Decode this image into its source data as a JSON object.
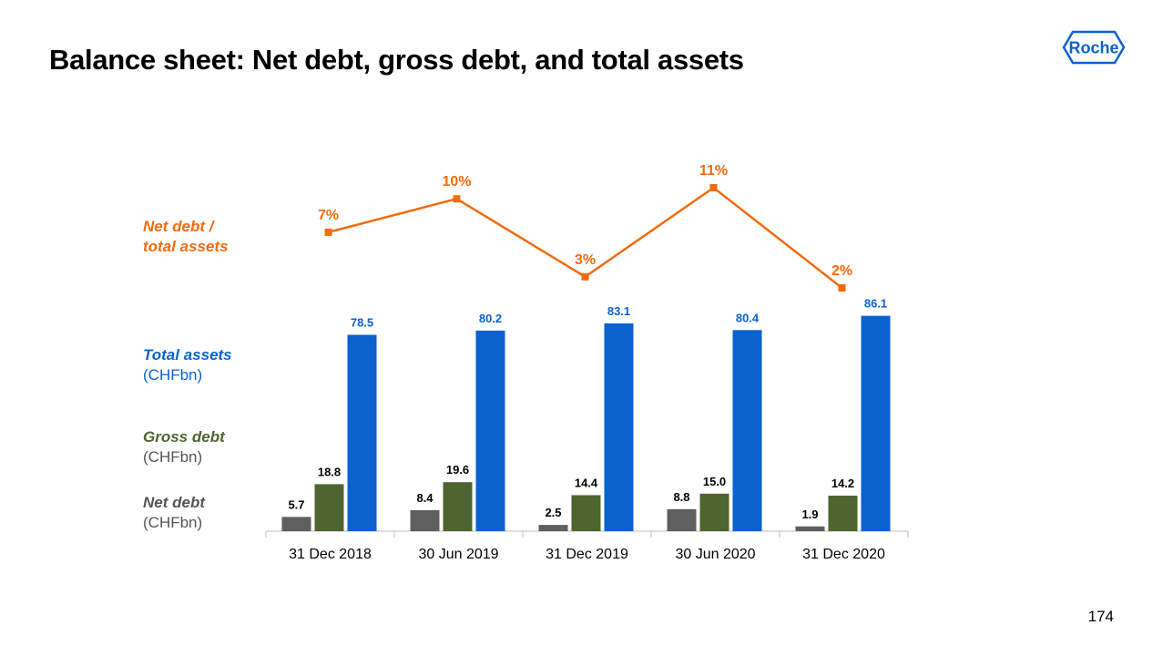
{
  "title": "Balance sheet: Net debt, gross debt, and total assets",
  "logo_text": "Roche",
  "page_number": "174",
  "labels": {
    "ratio_line1": "Net debt /",
    "ratio_line2": "total assets",
    "total_assets": "Total assets",
    "gross_debt": "Gross debt",
    "net_debt": "Net debt",
    "unit": "(CHFbn)"
  },
  "colors": {
    "net_debt": "#5f5f5f",
    "gross_debt": "#4e6531",
    "total_assets": "#0a62cf",
    "ratio": "#f26b0f",
    "logo": "#0a62cf"
  },
  "chart_data": {
    "type": "bar",
    "title": "Balance sheet: Net debt, gross debt, and total assets",
    "categories": [
      "31 Dec 2018",
      "30 Jun 2019",
      "31 Dec 2019",
      "30 Jun 2020",
      "31 Dec 2020"
    ],
    "ylabel": "CHFbn",
    "ylim": [
      0,
      90
    ],
    "series": [
      {
        "name": "Net debt",
        "values": [
          5.7,
          8.4,
          2.5,
          8.8,
          1.9
        ],
        "labels": [
          "5.7",
          "8.4",
          "2.5",
          "8.8",
          "1.9"
        ]
      },
      {
        "name": "Gross debt",
        "values": [
          18.8,
          19.6,
          14.4,
          15.0,
          14.2
        ],
        "labels": [
          "18.8",
          "19.6",
          "14.4",
          "15.0",
          "14.2"
        ]
      },
      {
        "name": "Total assets",
        "values": [
          78.5,
          80.2,
          83.1,
          80.4,
          86.1
        ],
        "labels": [
          "78.5",
          "80.2",
          "83.1",
          "80.4",
          "86.1"
        ]
      }
    ],
    "line_series": {
      "name": "Net debt / total assets",
      "type": "line",
      "values": [
        7,
        10,
        3,
        11,
        2
      ],
      "labels": [
        "7%",
        "10%",
        "3%",
        "11%",
        "2%"
      ]
    },
    "grid": false,
    "legend": "left"
  }
}
